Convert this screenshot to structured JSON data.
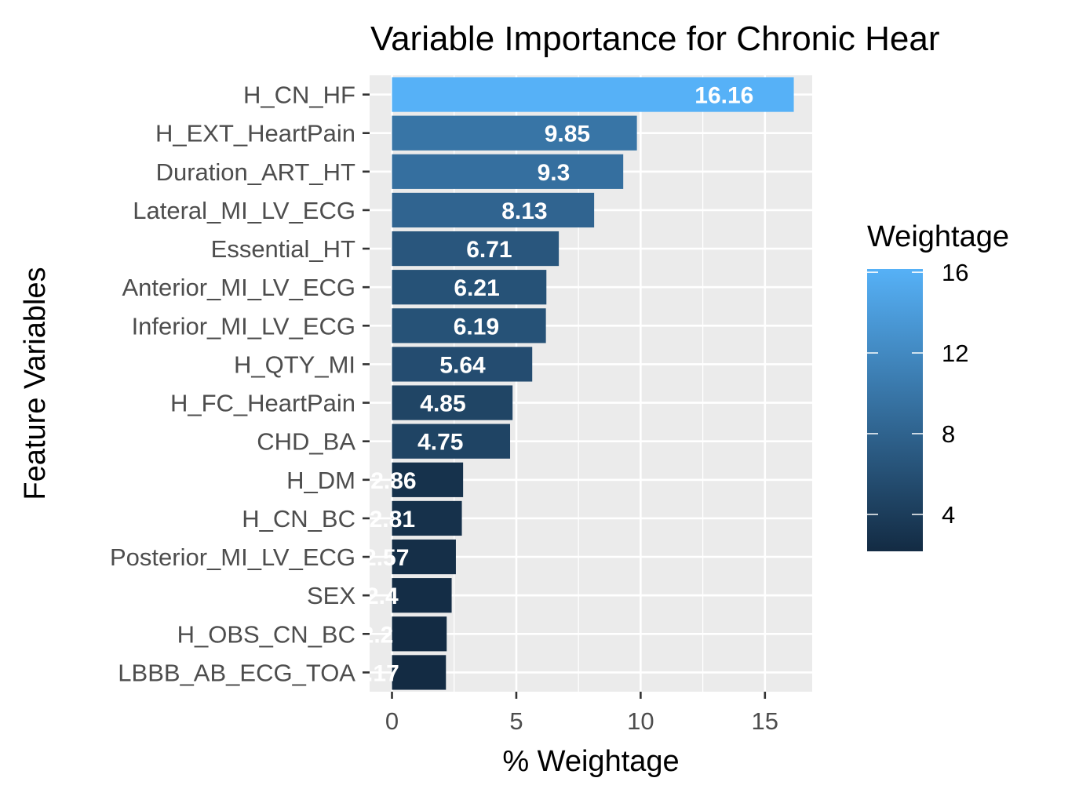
{
  "chart_data": {
    "type": "bar",
    "orientation": "horizontal",
    "title": "Variable Importance for Chronic Hear",
    "xlabel": "% Weightage",
    "ylabel": "Feature Variables",
    "xlim": [
      -0.9,
      16.9
    ],
    "x_ticks": [
      0,
      5,
      10,
      15
    ],
    "categories": [
      "H_CN_HF",
      "H_EXT_HeartPain",
      "Duration_ART_HT",
      "Lateral_MI_LV_ECG",
      "Essential_HT",
      "Anterior_MI_LV_ECG",
      "Inferior_MI_LV_ECG",
      "H_QTY_MI",
      "H_FC_HeartPain",
      "CHD_BA",
      "H_DM",
      "H_CN_BC",
      "Posterior_MI_LV_ECG",
      "SEX",
      "H_OBS_CN_BC",
      "LBBB_AB_ECG_TOA"
    ],
    "values": [
      16.16,
      9.85,
      9.3,
      8.13,
      6.71,
      6.21,
      6.19,
      5.64,
      4.85,
      4.75,
      2.86,
      2.81,
      2.57,
      2.4,
      2.2,
      2.17
    ],
    "value_labels": [
      "16.16",
      "9.85",
      "9.3",
      "8.13",
      "6.71",
      "6.21",
      "6.19",
      "5.64",
      "4.85",
      "4.75",
      "2.86",
      "2.81",
      "2.57",
      "2.4",
      "2.2",
      "2.17"
    ],
    "grid": true,
    "panel_background": "#ebebeb",
    "legend": {
      "title": "Weightage",
      "position": "right",
      "type": "colorbar",
      "range": [
        2.17,
        16.16
      ],
      "breaks": [
        4,
        8,
        12,
        16
      ],
      "color_low": "#132b43",
      "color_high": "#56b1f7"
    }
  }
}
